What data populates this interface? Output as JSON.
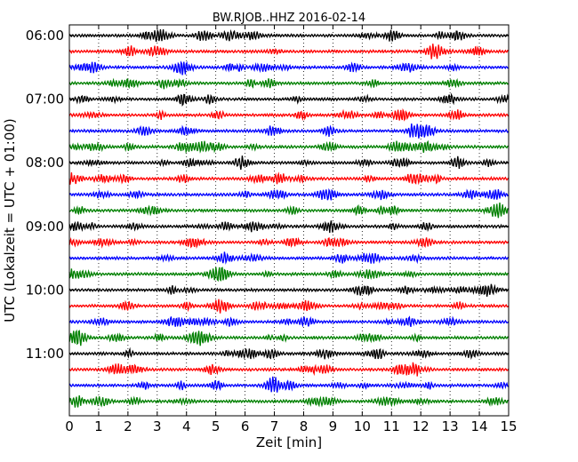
{
  "chart_data": {
    "type": "line",
    "title": "BW.RJOB..HHZ 2016-02-14",
    "xlabel": "Zeit  [min]",
    "ylabel": "UTC (Lokalzeit = UTC + 01:00)",
    "xlim": [
      0,
      15
    ],
    "x_ticks": [
      "0",
      "1",
      "2",
      "3",
      "4",
      "5",
      "6",
      "7",
      "8",
      "9",
      "10",
      "11",
      "12",
      "13",
      "14",
      "15"
    ],
    "y_ticks": [
      "06:00",
      "07:00",
      "08:00",
      "09:00",
      "10:00",
      "11:00"
    ],
    "trace_start_times": [
      "06:00",
      "06:15",
      "06:30",
      "06:45",
      "07:00",
      "07:15",
      "07:30",
      "07:45",
      "08:00",
      "08:15",
      "08:30",
      "08:45",
      "09:00",
      "09:15",
      "09:30",
      "09:45",
      "10:00",
      "10:15",
      "10:30",
      "10:45",
      "11:00",
      "11:15",
      "11:30",
      "11:45"
    ],
    "trace_colors": [
      "#000000",
      "#ff0000",
      "#0000ff",
      "#008000"
    ],
    "grid": "vertical dotted"
  }
}
